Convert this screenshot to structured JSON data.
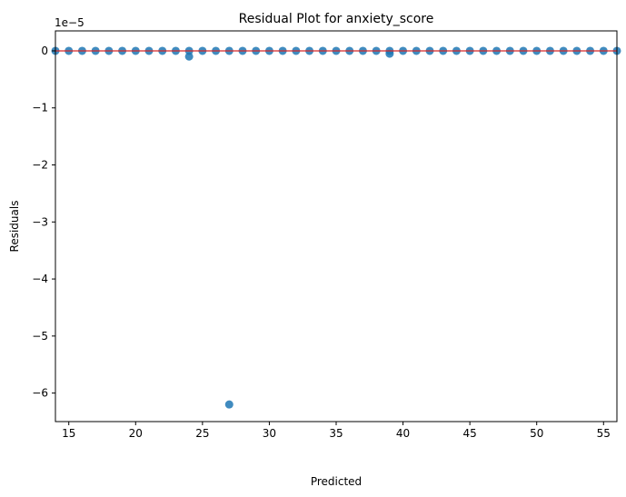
{
  "chart_data": {
    "type": "scatter",
    "title": "Residual Plot for anxiety_score",
    "xlabel": "Predicted",
    "ylabel": "Residuals",
    "y_scale_label": "1e−5",
    "xlim": [
      14,
      56
    ],
    "ylim": [
      -6.5,
      0.35
    ],
    "x_ticks": [
      15,
      20,
      25,
      30,
      35,
      40,
      45,
      50,
      55
    ],
    "y_ticks": [
      0,
      -1,
      -2,
      -3,
      -4,
      -5,
      -6
    ],
    "y_tick_labels": [
      "0",
      "−1",
      "−2",
      "−3",
      "−4",
      "−5",
      "−6"
    ],
    "reference_line_y": 0,
    "colors": {
      "points": "#1f77b4",
      "reference_line": "#d62728"
    },
    "grid": false,
    "points": [
      {
        "x": 14,
        "y": 0
      },
      {
        "x": 15,
        "y": 0
      },
      {
        "x": 16,
        "y": 0
      },
      {
        "x": 17,
        "y": 0
      },
      {
        "x": 18,
        "y": 0
      },
      {
        "x": 19,
        "y": 0
      },
      {
        "x": 20,
        "y": 0
      },
      {
        "x": 21,
        "y": 0
      },
      {
        "x": 22,
        "y": 0
      },
      {
        "x": 23,
        "y": 0
      },
      {
        "x": 24,
        "y": -0.1
      },
      {
        "x": 24,
        "y": 0
      },
      {
        "x": 25,
        "y": 0
      },
      {
        "x": 26,
        "y": 0
      },
      {
        "x": 27,
        "y": -6.2
      },
      {
        "x": 27,
        "y": 0
      },
      {
        "x": 28,
        "y": 0
      },
      {
        "x": 29,
        "y": 0
      },
      {
        "x": 30,
        "y": 0
      },
      {
        "x": 31,
        "y": 0
      },
      {
        "x": 32,
        "y": 0
      },
      {
        "x": 33,
        "y": 0
      },
      {
        "x": 34,
        "y": 0
      },
      {
        "x": 35,
        "y": 0
      },
      {
        "x": 36,
        "y": 0
      },
      {
        "x": 37,
        "y": 0
      },
      {
        "x": 38,
        "y": 0
      },
      {
        "x": 39,
        "y": -0.05
      },
      {
        "x": 39,
        "y": 0
      },
      {
        "x": 40,
        "y": 0
      },
      {
        "x": 41,
        "y": 0
      },
      {
        "x": 42,
        "y": 0
      },
      {
        "x": 43,
        "y": 0
      },
      {
        "x": 44,
        "y": 0
      },
      {
        "x": 45,
        "y": 0
      },
      {
        "x": 46,
        "y": 0
      },
      {
        "x": 47,
        "y": 0
      },
      {
        "x": 48,
        "y": 0
      },
      {
        "x": 49,
        "y": 0
      },
      {
        "x": 50,
        "y": 0
      },
      {
        "x": 51,
        "y": 0
      },
      {
        "x": 52,
        "y": 0
      },
      {
        "x": 53,
        "y": 0
      },
      {
        "x": 54,
        "y": 0
      },
      {
        "x": 55,
        "y": 0
      },
      {
        "x": 56,
        "y": 0
      }
    ]
  }
}
